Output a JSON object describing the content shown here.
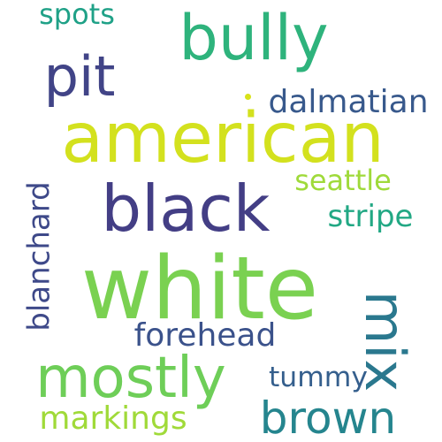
{
  "words": [
    {
      "key": "american",
      "text": "american",
      "color": "#d3e11e"
    },
    {
      "key": "white",
      "text": "white",
      "color": "#7ad151"
    },
    {
      "key": "black",
      "text": "black",
      "color": "#433e85"
    },
    {
      "key": "bully",
      "text": "bully",
      "color": "#2eb37c"
    },
    {
      "key": "pit",
      "text": "pit",
      "color": "#414487"
    },
    {
      "key": "mostly",
      "text": "mostly",
      "color": "#6ece58"
    },
    {
      "key": "mix",
      "text": "mix",
      "color": "#2a788e"
    },
    {
      "key": "brown",
      "text": "brown",
      "color": "#25858e"
    },
    {
      "key": "dalmatian",
      "text": "dalmatian",
      "color": "#38598c"
    },
    {
      "key": "seattle",
      "text": "seattle",
      "color": "#9fda3a"
    },
    {
      "key": "stripe",
      "text": "stripe",
      "color": "#22a884"
    },
    {
      "key": "forehead",
      "text": "forehead",
      "color": "#3b528b"
    },
    {
      "key": "blanchard",
      "text": "blanchard",
      "color": "#3e4989"
    },
    {
      "key": "spots",
      "text": "spots",
      "color": "#1fa187"
    },
    {
      "key": "tummy",
      "text": "tummy",
      "color": "#355f8d"
    },
    {
      "key": "markings",
      "text": "markings",
      "color": "#a0da39"
    }
  ],
  "accent_dot_color": "#d8e219"
}
